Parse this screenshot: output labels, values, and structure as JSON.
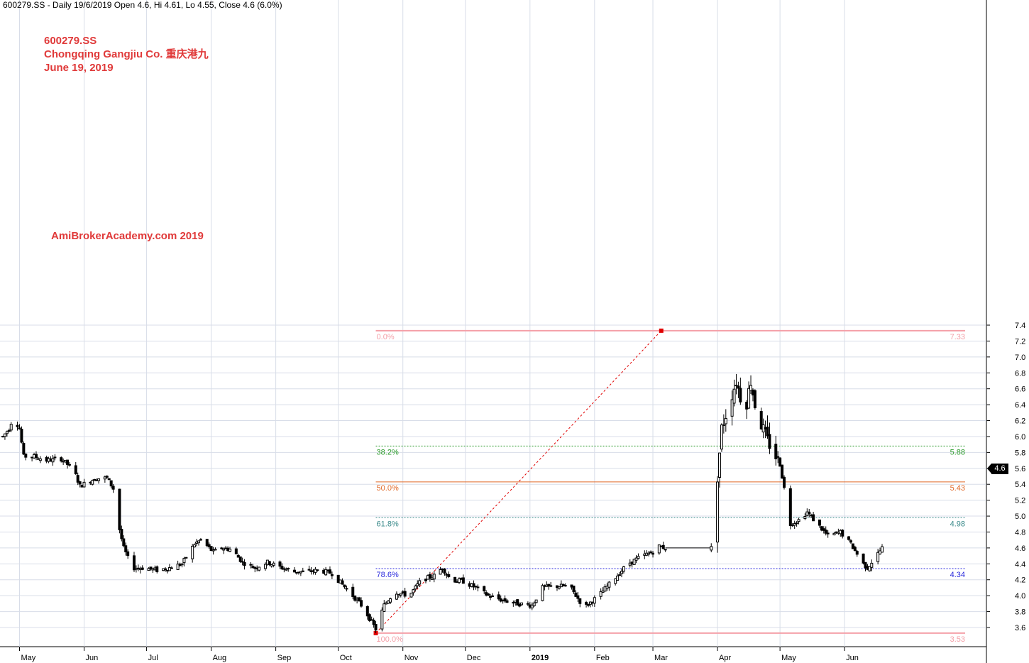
{
  "header": {
    "text": "600279.SS - Daily 19/6/2019 Open 4.6, Hi 4.61, Lo 4.55, Close 4.6 (6.0%)"
  },
  "annotations": {
    "ticker": "600279.SS",
    "company": "Chongqing Gangjiu Co.  重庆港九",
    "date": "June 19, 2019",
    "brand": "AmiBrokerAcademy.com  2019"
  },
  "last_price": "4.6",
  "colors": {
    "candle": "#000000",
    "annotation": "#e03a3a",
    "fib_0": "#f4a0a8",
    "fib_38": "#2a9a2a",
    "fib_50": "#e06a2a",
    "fib_61": "#3a8a8a",
    "fib_78": "#2a2adc",
    "trend": "#e00000",
    "grid": "#d8dde8"
  },
  "chart_data": {
    "type": "candlestick",
    "title": "600279.SS - Daily 19/6/2019 Open 4.6, Hi 4.61, Lo 4.55, Close 4.6 (6.0%)",
    "x_start": "2018-04-23",
    "x_end": "2019-06-19",
    "ylim": [
      3.48,
      7.48
    ],
    "y_ticks": [
      "3.6",
      "3.8",
      "4.0",
      "4.2",
      "4.4",
      "4.6",
      "4.8",
      "5.0",
      "5.2",
      "5.4",
      "5.6",
      "5.8",
      "6.0",
      "6.2",
      "6.4",
      "6.6",
      "6.8",
      "7.0",
      "7.2",
      "7.4"
    ],
    "x_ticks": [
      {
        "date": "2018-05-01",
        "label": "May",
        "bold": false
      },
      {
        "date": "2018-06-01",
        "label": "Jun",
        "bold": false
      },
      {
        "date": "2018-07-01",
        "label": "Jul",
        "bold": false
      },
      {
        "date": "2018-08-01",
        "label": "Aug",
        "bold": false
      },
      {
        "date": "2018-09-01",
        "label": "Sep",
        "bold": false
      },
      {
        "date": "2018-10-01",
        "label": "Oct",
        "bold": false
      },
      {
        "date": "2018-11-01",
        "label": "Nov",
        "bold": false
      },
      {
        "date": "2018-12-01",
        "label": "Dec",
        "bold": false
      },
      {
        "date": "2019-01-01",
        "label": "2019",
        "bold": true
      },
      {
        "date": "2019-02-01",
        "label": "Feb",
        "bold": false
      },
      {
        "date": "2019-03-01",
        "label": "Mar",
        "bold": false
      },
      {
        "date": "2019-04-01",
        "label": "Apr",
        "bold": false
      },
      {
        "date": "2019-05-01",
        "label": "May",
        "bold": false
      },
      {
        "date": "2019-06-01",
        "label": "Jun",
        "bold": false
      }
    ],
    "fib_levels": [
      {
        "pct": "0.0%",
        "value": 7.33,
        "label": "7.33",
        "color": "#f4a0a8",
        "dash": false
      },
      {
        "pct": "38.2%",
        "value": 5.88,
        "label": "5.88",
        "color": "#2a9a2a",
        "dash": true
      },
      {
        "pct": "50.0%",
        "value": 5.43,
        "label": "5.43",
        "color": "#e06a2a",
        "dash": false
      },
      {
        "pct": "61.8%",
        "value": 4.98,
        "label": "4.98",
        "color": "#3a8a8a",
        "dash": true
      },
      {
        "pct": "78.6%",
        "value": 4.34,
        "label": "4.34",
        "color": "#2a2adc",
        "dash": true
      },
      {
        "pct": "100.0%",
        "value": 3.53,
        "label": "3.53",
        "color": "#f4a0a8",
        "dash": false
      }
    ],
    "fib_start": "2018-10-19",
    "trend_line": {
      "from": {
        "date": "2018-10-19",
        "value": 3.53
      },
      "to": {
        "date": "2019-03-05",
        "value": 7.33
      }
    },
    "close_path": [
      [
        "2018-04-23",
        6.0
      ],
      [
        "2018-04-26",
        6.1
      ],
      [
        "2018-04-28",
        6.25
      ],
      [
        "2018-05-01",
        6.1
      ],
      [
        "2018-05-03",
        5.75
      ],
      [
        "2018-05-08",
        5.75
      ],
      [
        "2018-05-14",
        5.7
      ],
      [
        "2018-05-21",
        5.72
      ],
      [
        "2018-05-27",
        5.58
      ],
      [
        "2018-05-30",
        5.38
      ],
      [
        "2018-06-06",
        5.47
      ],
      [
        "2018-06-12",
        5.48
      ],
      [
        "2018-06-16",
        5.3
      ],
      [
        "2018-06-17",
        4.95
      ],
      [
        "2018-06-20",
        4.6
      ],
      [
        "2018-06-24",
        4.35
      ],
      [
        "2018-06-30",
        4.35
      ],
      [
        "2018-07-06",
        4.32
      ],
      [
        "2018-07-12",
        4.35
      ],
      [
        "2018-07-18",
        4.4
      ],
      [
        "2018-07-24",
        4.65
      ],
      [
        "2018-07-27",
        4.7
      ],
      [
        "2018-08-02",
        4.55
      ],
      [
        "2018-08-06",
        4.6
      ],
      [
        "2018-08-11",
        4.58
      ],
      [
        "2018-08-16",
        4.42
      ],
      [
        "2018-08-22",
        4.35
      ],
      [
        "2018-08-28",
        4.42
      ],
      [
        "2018-09-04",
        4.35
      ],
      [
        "2018-09-10",
        4.3
      ],
      [
        "2018-09-16",
        4.3
      ],
      [
        "2018-09-22",
        4.32
      ],
      [
        "2018-09-28",
        4.28
      ],
      [
        "2018-10-08",
        4.0
      ],
      [
        "2018-10-13",
        3.85
      ],
      [
        "2018-10-19",
        3.58
      ],
      [
        "2018-10-23",
        3.88
      ],
      [
        "2018-10-28",
        4.05
      ],
      [
        "2018-11-04",
        4.0
      ],
      [
        "2018-11-10",
        4.2
      ],
      [
        "2018-11-16",
        4.25
      ],
      [
        "2018-11-20",
        4.35
      ],
      [
        "2018-11-24",
        4.2
      ],
      [
        "2018-11-30",
        4.18
      ],
      [
        "2018-12-06",
        4.1
      ],
      [
        "2018-12-12",
        4.0
      ],
      [
        "2018-12-18",
        3.95
      ],
      [
        "2018-12-26",
        3.9
      ],
      [
        "2019-01-02",
        3.88
      ],
      [
        "2019-01-07",
        4.1
      ],
      [
        "2019-01-14",
        4.12
      ],
      [
        "2019-01-20",
        4.12
      ],
      [
        "2019-01-27",
        3.85
      ],
      [
        "2019-02-03",
        4.0
      ],
      [
        "2019-02-10",
        4.2
      ],
      [
        "2019-02-17",
        4.4
      ],
      [
        "2019-02-24",
        4.5
      ],
      [
        "2019-03-01",
        4.55
      ],
      [
        "2019-03-04",
        4.62
      ],
      [
        "2019-03-07",
        4.6
      ],
      [
        "2019-03-29",
        4.6
      ],
      [
        "2019-04-03",
        6.1
      ],
      [
        "2019-04-07",
        6.45
      ],
      [
        "2019-04-10",
        6.7
      ],
      [
        "2019-04-14",
        6.3
      ],
      [
        "2019-04-17",
        6.7
      ],
      [
        "2019-04-19",
        6.4
      ],
      [
        "2019-04-22",
        6.15
      ],
      [
        "2019-04-25",
        5.95
      ],
      [
        "2019-04-28",
        5.8
      ],
      [
        "2019-05-01",
        5.65
      ],
      [
        "2019-05-03",
        5.35
      ],
      [
        "2019-05-06",
        4.9
      ],
      [
        "2019-05-10",
        4.95
      ],
      [
        "2019-05-14",
        5.05
      ],
      [
        "2019-05-19",
        4.9
      ],
      [
        "2019-05-24",
        4.75
      ],
      [
        "2019-05-30",
        4.8
      ],
      [
        "2019-06-04",
        4.65
      ],
      [
        "2019-06-10",
        4.4
      ],
      [
        "2019-06-12",
        4.35
      ],
      [
        "2019-06-19",
        4.6
      ]
    ],
    "hline": {
      "from": "2019-03-07",
      "to": "2019-03-29",
      "value": 4.6
    }
  }
}
